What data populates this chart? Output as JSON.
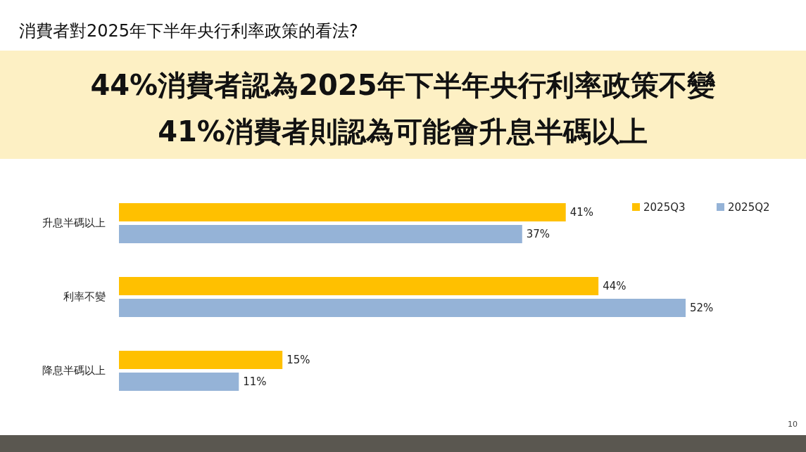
{
  "chart_data": {
    "type": "bar",
    "orientation": "horizontal",
    "title": "消費者對2025年下半年央行利率政策的看法?",
    "subtitle": "44%消費者認為2025年下半年央行利率政策不變\n41%消費者則認為可能會升息半碼以上",
    "categories": [
      "升息半碼以上",
      "利率不變",
      "降息半碼以上"
    ],
    "series": [
      {
        "name": "2025Q3",
        "color": "#ffc000",
        "values": [
          41,
          44,
          15
        ],
        "value_labels": [
          "41%",
          "44%",
          "15%"
        ]
      },
      {
        "name": "2025Q2",
        "color": "#95b3d7",
        "values": [
          37,
          52,
          11
        ],
        "value_labels": [
          "37%",
          "52%",
          "11%"
        ]
      }
    ],
    "legend": "top right",
    "annotations": [
      "10"
    ]
  }
}
